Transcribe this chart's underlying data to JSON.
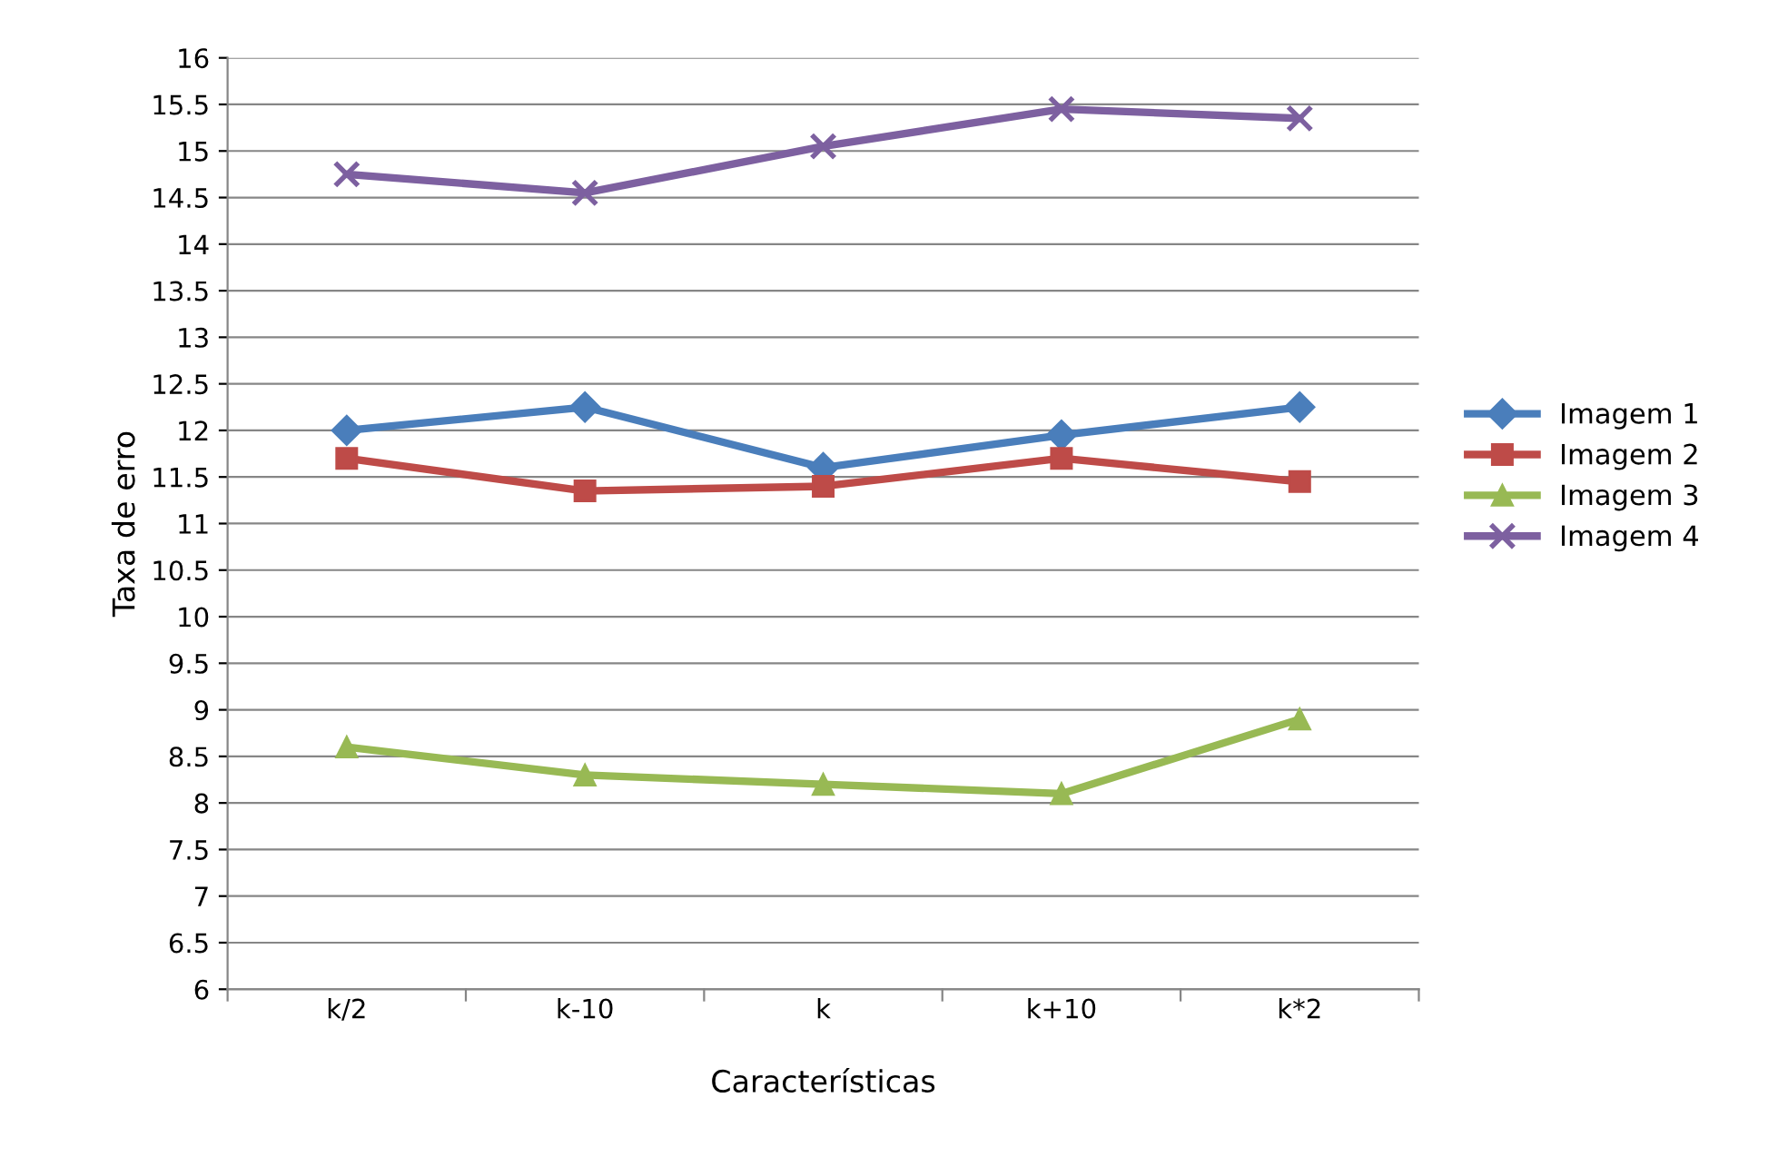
{
  "chart_data": {
    "type": "line",
    "xlabel": "Características",
    "ylabel": "Taxa de erro",
    "categories": [
      "k/2",
      "k-10",
      "k",
      "k+10",
      "k*2"
    ],
    "series": [
      {
        "name": "Imagem 1",
        "color": "#4a7ebb",
        "marker": "diamond",
        "values": [
          12.0,
          12.25,
          11.6,
          11.95,
          12.25
        ]
      },
      {
        "name": "Imagem 2",
        "color": "#be4b48",
        "marker": "square",
        "values": [
          11.7,
          11.35,
          11.4,
          11.7,
          11.45
        ]
      },
      {
        "name": "Imagem 3",
        "color": "#98b954",
        "marker": "triangle",
        "values": [
          8.6,
          8.3,
          8.2,
          8.1,
          8.9
        ]
      },
      {
        "name": "Imagem 4",
        "color": "#7d60a0",
        "marker": "cross",
        "values": [
          14.75,
          14.55,
          15.05,
          15.45,
          15.35
        ]
      }
    ],
    "ylim": [
      6,
      16
    ],
    "yticks": [
      6,
      6.5,
      7,
      7.5,
      8,
      8.5,
      9,
      9.5,
      10,
      10.5,
      11,
      11.5,
      12,
      12.5,
      13,
      13.5,
      14,
      14.5,
      15,
      15.5,
      16
    ],
    "grid": "y",
    "legend": "right"
  }
}
